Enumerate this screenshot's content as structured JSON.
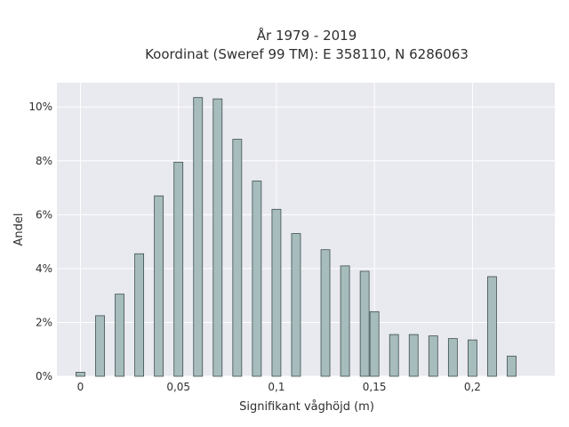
{
  "chart_data": {
    "type": "bar",
    "title_line1": "År 1979 - 2019",
    "title_line2": "Koordinat (Sweref 99 TM): E 358110, N 6286063",
    "xlabel": "Signifikant våghöjd (m)",
    "ylabel": "Andel",
    "x": [
      0,
      0.01,
      0.02,
      0.03,
      0.04,
      0.05,
      0.06,
      0.07,
      0.08,
      0.09,
      0.1,
      0.11,
      0.125,
      0.135,
      0.145,
      0.15,
      0.16,
      0.17,
      0.18,
      0.19,
      0.2,
      0.21,
      0.22
    ],
    "values": [
      0.15,
      2.25,
      3.05,
      4.55,
      6.7,
      7.95,
      10.35,
      10.3,
      8.8,
      7.25,
      6.2,
      5.3,
      4.7,
      4.1,
      3.9,
      2.4,
      1.55,
      1.55,
      1.5,
      1.4,
      1.35,
      3.7,
      0.75
    ],
    "xlim": [
      -0.012,
      0.242
    ],
    "ylim": [
      0,
      10.9
    ],
    "x_ticks": [
      0,
      0.05,
      0.1,
      0.15,
      0.2
    ],
    "x_tick_labels": [
      "0",
      "0,05",
      "0,1",
      "0,15",
      "0,2"
    ],
    "y_ticks": [
      0,
      2,
      4,
      6,
      8,
      10
    ],
    "y_tick_labels": [
      "0%",
      "2%",
      "4%",
      "6%",
      "8%",
      "10%"
    ],
    "grid": true,
    "colors": {
      "bar_fill": "#a6bcbd",
      "bar_stroke": "#3e4f4d",
      "plot_bg": "#e9e9f0",
      "grid": "#ffffff"
    }
  }
}
